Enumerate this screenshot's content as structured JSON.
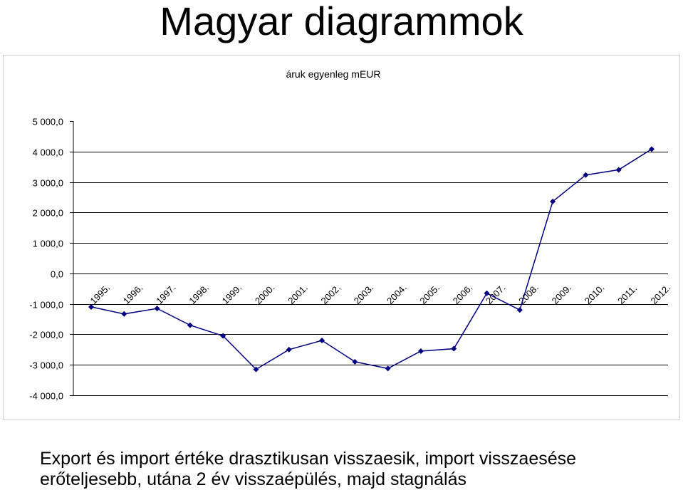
{
  "page": {
    "title": "Magyar diagrammok",
    "caption_line1": "Export és import értéke drasztikusan visszaesik, import visszaesése",
    "caption_line2": "erőteljesebb, utána 2 év visszaépülés, majd stagnálás"
  },
  "chart_data": {
    "type": "line",
    "title": "áruk egyenleg mEUR",
    "xlabel": "",
    "ylabel": "",
    "categories": [
      "1995.",
      "1996.",
      "1997.",
      "1998.",
      "1999.",
      "2000.",
      "2001.",
      "2002.",
      "2003.",
      "2004.",
      "2005.",
      "2006.",
      "2007.",
      "2008.",
      "2009.",
      "2010.",
      "2011.",
      "2012."
    ],
    "series": [
      {
        "values": [
          -1100,
          -1330,
          -1150,
          -1700,
          -2050,
          -3150,
          -2500,
          -2200,
          -2900,
          -3120,
          -2550,
          -2470,
          -650,
          -1200,
          2360,
          3230,
          3400,
          4080
        ],
        "color": "#000080",
        "marker": "diamond"
      }
    ],
    "yticks": [
      "5 000,0",
      "4 000,0",
      "3 000,0",
      "2 000,0",
      "1 000,0",
      "0,0",
      "-1 000,0",
      "-2 000,0",
      "-3 000,0",
      "-4 000,0"
    ],
    "ylim": [
      -4000,
      5000
    ],
    "grid": true,
    "legend": "none"
  }
}
